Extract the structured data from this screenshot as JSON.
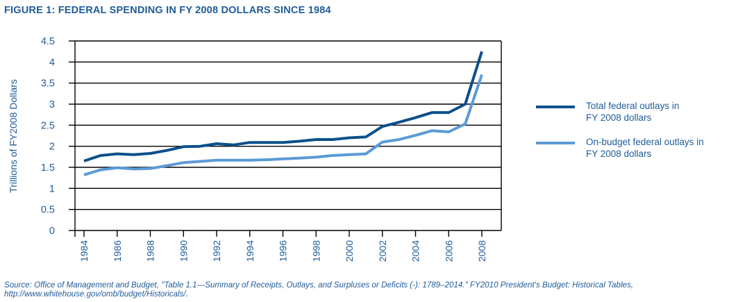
{
  "figure_title": "FIGURE 1: FEDERAL SPENDING IN FY 2008 DOLLARS SINCE 1984",
  "source_note": "Source:  Office of Management and Budget, \"Table 1.1—Summary of Receipts, Outlays, and Surpluses or Deficits (-):  1789–2014.\" FY2010 President's Budget: Historical Tables, http://www.whitehouse.gov/omb/budget/Historicals/.",
  "colors": {
    "text": "#1f5c99",
    "total": "#0d4f8b",
    "onbudget": "#5b9bd5",
    "grid": "#000000"
  },
  "chart_data": {
    "type": "line",
    "xlabel": "",
    "ylabel": "Trillions of FY2008 Dollars",
    "ylim": [
      0,
      4.5
    ],
    "yticks": [
      0,
      0.5,
      1,
      1.5,
      2,
      2.5,
      3,
      3.5,
      4,
      4.5
    ],
    "ytick_labels": [
      "0",
      "0.5",
      "1",
      "1.5",
      "2",
      "2.5",
      "3",
      "3.5",
      "4",
      "4.5"
    ],
    "xlim": [
      1984,
      2008
    ],
    "xticks": [
      1984,
      1986,
      1988,
      1990,
      1992,
      1994,
      1996,
      1998,
      2000,
      2002,
      2004,
      2006,
      2008
    ],
    "xtick_labels": [
      "1984",
      "1986",
      "1988",
      "1990",
      "1992",
      "1994",
      "1996",
      "1998",
      "2000",
      "2002",
      "2004",
      "2006",
      "2008"
    ],
    "grid": "horizontal",
    "legend_position": "right",
    "x": [
      1984,
      1985,
      1986,
      1987,
      1988,
      1989,
      1990,
      1991,
      1992,
      1993,
      1994,
      1995,
      1996,
      1997,
      1998,
      1999,
      2000,
      2001,
      2002,
      2003,
      2004,
      2005,
      2006,
      2007,
      2008
    ],
    "series": [
      {
        "name": "Total federal outlays in FY 2008 dollars",
        "label_lines": [
          "Total federal outlays in",
          "FY 2008 dollars"
        ],
        "color": "#0d4f8b",
        "values": [
          1.65,
          1.78,
          1.82,
          1.8,
          1.83,
          1.9,
          1.99,
          2.0,
          2.06,
          2.03,
          2.09,
          2.09,
          2.09,
          2.12,
          2.16,
          2.16,
          2.2,
          2.22,
          2.47,
          2.57,
          2.68,
          2.8,
          2.8,
          3.0,
          4.25
        ]
      },
      {
        "name": "On-budget federal outlays in FY 2008 dollars",
        "label_lines": [
          "On-budget federal outlays in",
          "FY 2008 dollars"
        ],
        "color": "#5b9bd5",
        "values": [
          1.32,
          1.44,
          1.49,
          1.46,
          1.47,
          1.54,
          1.61,
          1.64,
          1.67,
          1.67,
          1.67,
          1.68,
          1.7,
          1.72,
          1.74,
          1.78,
          1.8,
          1.82,
          2.1,
          2.16,
          2.26,
          2.37,
          2.34,
          2.53,
          3.7
        ]
      }
    ]
  }
}
